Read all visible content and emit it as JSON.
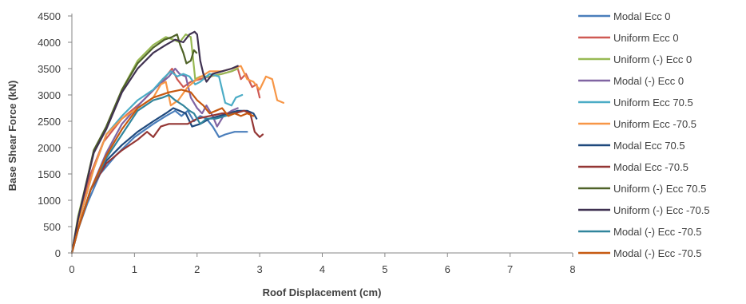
{
  "chart_data": {
    "type": "line",
    "xlabel": "Roof Displacement  (cm)",
    "ylabel": "Base Shear Force (kN)",
    "xlim": [
      0,
      8
    ],
    "ylim": [
      0,
      4500
    ],
    "xticks": [
      0,
      1,
      2,
      3,
      4,
      5,
      6,
      7,
      8
    ],
    "yticks": [
      0,
      500,
      1000,
      1500,
      2000,
      2500,
      3000,
      3500,
      4000,
      4500
    ],
    "grid": false,
    "legend_position": "right",
    "series": [
      {
        "name": "Modal Ecc 0",
        "color": "#4a7ebb",
        "points": [
          [
            0,
            0
          ],
          [
            0.1,
            450
          ],
          [
            0.25,
            950
          ],
          [
            0.45,
            1500
          ],
          [
            0.7,
            1850
          ],
          [
            1.0,
            2200
          ],
          [
            1.3,
            2450
          ],
          [
            1.5,
            2600
          ],
          [
            1.65,
            2700
          ],
          [
            1.75,
            2600
          ],
          [
            1.85,
            2700
          ],
          [
            1.95,
            2500
          ],
          [
            2.05,
            2600
          ],
          [
            2.15,
            2550
          ],
          [
            2.25,
            2400
          ],
          [
            2.35,
            2200
          ],
          [
            2.45,
            2250
          ],
          [
            2.6,
            2300
          ],
          [
            2.8,
            2300
          ]
        ]
      },
      {
        "name": "Uniform Ecc 0",
        "color": "#cf5a54",
        "points": [
          [
            0,
            0
          ],
          [
            0.1,
            600
          ],
          [
            0.3,
            1500
          ],
          [
            0.5,
            2100
          ],
          [
            0.8,
            2550
          ],
          [
            1.1,
            2850
          ],
          [
            1.35,
            3150
          ],
          [
            1.5,
            3350
          ],
          [
            1.6,
            3500
          ],
          [
            1.68,
            3300
          ],
          [
            1.78,
            3150
          ],
          [
            1.9,
            3250
          ],
          [
            2.05,
            3300
          ],
          [
            2.2,
            3350
          ],
          [
            2.4,
            3400
          ],
          [
            2.55,
            3450
          ],
          [
            2.65,
            3500
          ],
          [
            2.7,
            3300
          ],
          [
            2.78,
            3400
          ],
          [
            2.88,
            3150
          ],
          [
            2.95,
            3200
          ],
          [
            3.0,
            2950
          ]
        ]
      },
      {
        "name": "Uniform (-) Ecc 0",
        "color": "#98b954",
        "points": [
          [
            0,
            0
          ],
          [
            0.1,
            700
          ],
          [
            0.35,
            1900
          ],
          [
            0.55,
            2400
          ],
          [
            0.8,
            3100
          ],
          [
            1.05,
            3650
          ],
          [
            1.3,
            3950
          ],
          [
            1.5,
            4100
          ],
          [
            1.62,
            4050
          ],
          [
            1.72,
            4000
          ],
          [
            1.82,
            4150
          ],
          [
            1.9,
            4100
          ],
          [
            1.97,
            3300
          ],
          [
            2.05,
            3350
          ],
          [
            2.2,
            3350
          ],
          [
            2.4,
            3400
          ],
          [
            2.55,
            3450
          ],
          [
            2.65,
            3500
          ]
        ]
      },
      {
        "name": "Modal (-) Ecc 0",
        "color": "#8064a2",
        "points": [
          [
            0,
            0
          ],
          [
            0.1,
            450
          ],
          [
            0.3,
            1200
          ],
          [
            0.55,
            1900
          ],
          [
            0.8,
            2450
          ],
          [
            1.1,
            2850
          ],
          [
            1.35,
            3150
          ],
          [
            1.55,
            3350
          ],
          [
            1.65,
            3500
          ],
          [
            1.72,
            3400
          ],
          [
            1.82,
            3350
          ],
          [
            1.9,
            2950
          ],
          [
            2.0,
            2750
          ],
          [
            2.08,
            2650
          ],
          [
            2.15,
            2800
          ],
          [
            2.25,
            2600
          ],
          [
            2.32,
            2400
          ],
          [
            2.42,
            2600
          ],
          [
            2.55,
            2700
          ],
          [
            2.65,
            2750
          ]
        ]
      },
      {
        "name": "Uniform Ecc 70.5",
        "color": "#4bacc6",
        "points": [
          [
            0,
            0
          ],
          [
            0.1,
            550
          ],
          [
            0.35,
            1600
          ],
          [
            0.55,
            2250
          ],
          [
            0.8,
            2600
          ],
          [
            1.05,
            2900
          ],
          [
            1.3,
            3100
          ],
          [
            1.45,
            3300
          ],
          [
            1.58,
            3450
          ],
          [
            1.68,
            3350
          ],
          [
            1.78,
            3400
          ],
          [
            1.88,
            3350
          ],
          [
            1.97,
            3200
          ],
          [
            2.05,
            3250
          ],
          [
            2.2,
            3400
          ],
          [
            2.35,
            3350
          ],
          [
            2.45,
            2850
          ],
          [
            2.55,
            2800
          ],
          [
            2.62,
            2950
          ],
          [
            2.72,
            3000
          ]
        ]
      },
      {
        "name": "Uniform Ecc -70.5",
        "color": "#f79646",
        "points": [
          [
            0,
            0
          ],
          [
            0.1,
            550
          ],
          [
            0.35,
            1600
          ],
          [
            0.55,
            2250
          ],
          [
            0.8,
            2550
          ],
          [
            1.05,
            2750
          ],
          [
            1.3,
            2950
          ],
          [
            1.42,
            3200
          ],
          [
            1.5,
            3250
          ],
          [
            1.58,
            2800
          ],
          [
            1.7,
            2900
          ],
          [
            1.85,
            3150
          ],
          [
            2.0,
            3300
          ],
          [
            2.2,
            3450
          ],
          [
            2.4,
            3450
          ],
          [
            2.55,
            3500
          ],
          [
            2.7,
            3550
          ],
          [
            2.8,
            3300
          ],
          [
            2.9,
            3250
          ],
          [
            3.0,
            3100
          ],
          [
            3.1,
            3350
          ],
          [
            3.2,
            3300
          ],
          [
            3.28,
            2900
          ],
          [
            3.38,
            2850
          ]
        ]
      },
      {
        "name": "Modal Ecc 70.5",
        "color": "#1f497d",
        "points": [
          [
            0,
            0
          ],
          [
            0.1,
            450
          ],
          [
            0.3,
            1200
          ],
          [
            0.55,
            1750
          ],
          [
            0.8,
            2050
          ],
          [
            1.05,
            2300
          ],
          [
            1.3,
            2500
          ],
          [
            1.5,
            2650
          ],
          [
            1.62,
            2750
          ],
          [
            1.72,
            2700
          ],
          [
            1.82,
            2650
          ],
          [
            1.92,
            2400
          ],
          [
            2.05,
            2450
          ],
          [
            2.2,
            2550
          ],
          [
            2.35,
            2600
          ],
          [
            2.5,
            2650
          ],
          [
            2.65,
            2700
          ],
          [
            2.8,
            2700
          ],
          [
            2.9,
            2650
          ],
          [
            2.95,
            2550
          ]
        ]
      },
      {
        "name": "Modal Ecc -70.5",
        "color": "#943634",
        "points": [
          [
            0,
            0
          ],
          [
            0.1,
            450
          ],
          [
            0.3,
            1200
          ],
          [
            0.55,
            1700
          ],
          [
            0.8,
            1950
          ],
          [
            1.05,
            2150
          ],
          [
            1.2,
            2300
          ],
          [
            1.3,
            2200
          ],
          [
            1.42,
            2400
          ],
          [
            1.55,
            2450
          ],
          [
            1.7,
            2450
          ],
          [
            1.85,
            2450
          ],
          [
            2.0,
            2550
          ],
          [
            2.2,
            2600
          ],
          [
            2.4,
            2650
          ],
          [
            2.6,
            2650
          ],
          [
            2.75,
            2700
          ],
          [
            2.85,
            2650
          ],
          [
            2.92,
            2300
          ],
          [
            3.0,
            2200
          ],
          [
            3.05,
            2250
          ]
        ]
      },
      {
        "name": "Uniform (-) Ecc 70.5",
        "color": "#4f6228",
        "points": [
          [
            0,
            0
          ],
          [
            0.1,
            650
          ],
          [
            0.35,
            1950
          ],
          [
            0.55,
            2400
          ],
          [
            0.8,
            3100
          ],
          [
            1.05,
            3600
          ],
          [
            1.3,
            3900
          ],
          [
            1.48,
            4050
          ],
          [
            1.6,
            4100
          ],
          [
            1.68,
            4150
          ],
          [
            1.73,
            3950
          ],
          [
            1.78,
            3800
          ],
          [
            1.83,
            3600
          ],
          [
            1.9,
            3650
          ],
          [
            1.95,
            3850
          ],
          [
            1.99,
            3800
          ]
        ]
      },
      {
        "name": "Uniform (-) Ecc -70.5",
        "color": "#3f3151",
        "points": [
          [
            0,
            0
          ],
          [
            0.1,
            650
          ],
          [
            0.35,
            1900
          ],
          [
            0.55,
            2350
          ],
          [
            0.8,
            3050
          ],
          [
            1.05,
            3500
          ],
          [
            1.3,
            3800
          ],
          [
            1.5,
            3950
          ],
          [
            1.65,
            4050
          ],
          [
            1.78,
            4000
          ],
          [
            1.88,
            4150
          ],
          [
            1.96,
            4200
          ],
          [
            2.0,
            4150
          ],
          [
            2.05,
            3650
          ],
          [
            2.1,
            3400
          ],
          [
            2.15,
            3250
          ],
          [
            2.25,
            3400
          ],
          [
            2.4,
            3450
          ],
          [
            2.55,
            3500
          ],
          [
            2.65,
            3550
          ]
        ]
      },
      {
        "name": "Modal (-) Ecc -70.5",
        "color": "#31859c",
        "points": [
          [
            0,
            0
          ],
          [
            0.1,
            450
          ],
          [
            0.3,
            1200
          ],
          [
            0.55,
            1800
          ],
          [
            0.8,
            2250
          ],
          [
            1.05,
            2700
          ],
          [
            1.3,
            2900
          ],
          [
            1.45,
            2950
          ],
          [
            1.55,
            3000
          ],
          [
            1.65,
            2900
          ],
          [
            1.78,
            2800
          ],
          [
            1.88,
            2700
          ],
          [
            1.95,
            2650
          ],
          [
            2.05,
            2450
          ],
          [
            2.15,
            2550
          ],
          [
            2.3,
            2550
          ],
          [
            2.45,
            2600
          ],
          [
            2.6,
            2650
          ]
        ]
      },
      {
        "name": "Modal (-) Ecc -70.5",
        "color": "#c65911",
        "points": [
          [
            0,
            0
          ],
          [
            0.1,
            450
          ],
          [
            0.3,
            1200
          ],
          [
            0.55,
            1850
          ],
          [
            0.8,
            2350
          ],
          [
            1.05,
            2750
          ],
          [
            1.3,
            2950
          ],
          [
            1.55,
            3050
          ],
          [
            1.75,
            3100
          ],
          [
            1.9,
            3050
          ],
          [
            2.0,
            2900
          ],
          [
            2.1,
            2800
          ],
          [
            2.2,
            2650
          ],
          [
            2.3,
            2700
          ],
          [
            2.4,
            2750
          ],
          [
            2.5,
            2600
          ],
          [
            2.6,
            2650
          ],
          [
            2.7,
            2600
          ],
          [
            2.8,
            2650
          ],
          [
            2.9,
            2600
          ]
        ]
      }
    ]
  }
}
